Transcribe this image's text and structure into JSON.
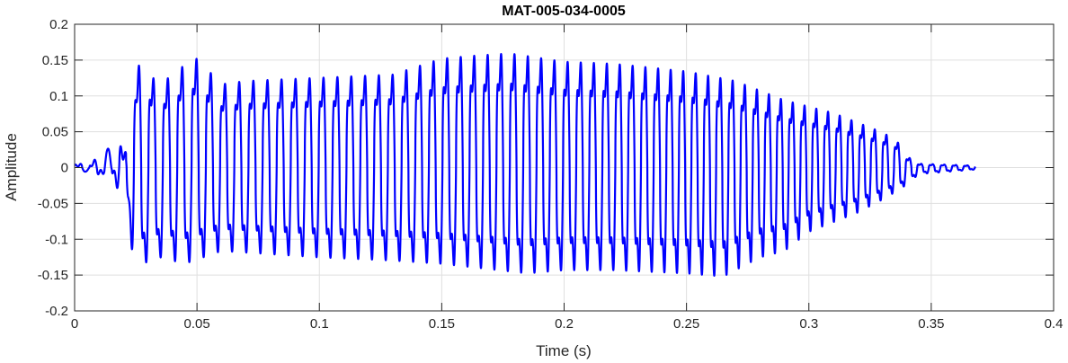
{
  "chart_data": {
    "type": "line",
    "title": "MAT-005-034-0005",
    "xlabel": "Time (s)",
    "ylabel": "Amplitude",
    "xlim": [
      0,
      0.4
    ],
    "ylim": [
      -0.2,
      0.2
    ],
    "x_ticks": [
      0,
      0.05,
      0.1,
      0.15,
      0.2,
      0.25,
      0.3,
      0.35,
      0.4
    ],
    "x_tick_labels": [
      "0",
      "0.05",
      "0.1",
      "0.15",
      "0.2",
      "0.25",
      "0.3",
      "0.35",
      "0.4"
    ],
    "y_ticks": [
      -0.2,
      -0.15,
      -0.1,
      -0.05,
      0,
      0.05,
      0.1,
      0.15,
      0.2
    ],
    "y_tick_labels": [
      "-0.2",
      "-0.15",
      "-0.1",
      "-0.05",
      "0",
      "0.05",
      "0.1",
      "0.15",
      "0.2"
    ],
    "grid": true,
    "series": [
      {
        "color": "#0000ff",
        "signal_start": 0,
        "signal_end": 0.368,
        "periods_s": [
          [
            0.0,
            0.0062
          ],
          [
            0.03,
            0.0059
          ],
          [
            0.2,
            0.0054
          ],
          [
            0.3,
            0.0048
          ],
          [
            0.368,
            0.0047
          ]
        ],
        "envelope_max": [
          [
            0,
            0.004
          ],
          [
            0.011,
            0.01
          ],
          [
            0.013,
            0.025
          ],
          [
            0.0215,
            0.03
          ],
          [
            0.023,
            0.115
          ],
          [
            0.026,
            0.16
          ],
          [
            0.035,
            0.13
          ],
          [
            0.045,
            0.16
          ],
          [
            0.05,
            0.17
          ],
          [
            0.06,
            0.13
          ],
          [
            0.07,
            0.135
          ],
          [
            0.1,
            0.14
          ],
          [
            0.13,
            0.145
          ],
          [
            0.15,
            0.17
          ],
          [
            0.165,
            0.175
          ],
          [
            0.178,
            0.178
          ],
          [
            0.2,
            0.165
          ],
          [
            0.22,
            0.162
          ],
          [
            0.25,
            0.15
          ],
          [
            0.27,
            0.135
          ],
          [
            0.28,
            0.12
          ],
          [
            0.29,
            0.105
          ],
          [
            0.3,
            0.095
          ],
          [
            0.31,
            0.085
          ],
          [
            0.32,
            0.07
          ],
          [
            0.33,
            0.055
          ],
          [
            0.336,
            0.042
          ],
          [
            0.339,
            0.02
          ],
          [
            0.345,
            0.006
          ],
          [
            0.368,
            0.003
          ]
        ],
        "envelope_min": [
          [
            0,
            -0.003
          ],
          [
            0.011,
            -0.01
          ],
          [
            0.014,
            -0.012
          ],
          [
            0.02,
            -0.03
          ],
          [
            0.022,
            -0.065
          ],
          [
            0.024,
            -0.155
          ],
          [
            0.035,
            -0.14
          ],
          [
            0.045,
            -0.15
          ],
          [
            0.06,
            -0.13
          ],
          [
            0.1,
            -0.14
          ],
          [
            0.13,
            -0.145
          ],
          [
            0.15,
            -0.15
          ],
          [
            0.185,
            -0.165
          ],
          [
            0.2,
            -0.16
          ],
          [
            0.22,
            -0.16
          ],
          [
            0.25,
            -0.165
          ],
          [
            0.265,
            -0.17
          ],
          [
            0.28,
            -0.14
          ],
          [
            0.29,
            -0.13
          ],
          [
            0.3,
            -0.1
          ],
          [
            0.31,
            -0.085
          ],
          [
            0.32,
            -0.07
          ],
          [
            0.33,
            -0.05
          ],
          [
            0.338,
            -0.032
          ],
          [
            0.345,
            -0.01
          ],
          [
            0.368,
            -0.003
          ]
        ]
      }
    ]
  }
}
